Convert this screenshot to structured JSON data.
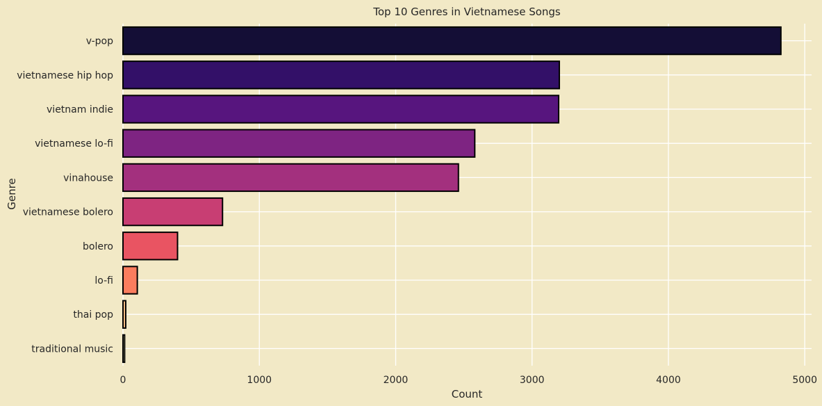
{
  "chart_data": {
    "type": "bar",
    "orientation": "horizontal",
    "title": "Top 10 Genres in Vietnamese Songs",
    "xlabel": "Count",
    "ylabel": "Genre",
    "categories": [
      "v-pop",
      "vietnamese hip hop",
      "vietnam indie",
      "vietnamese lo-fi",
      "vinahouse",
      "vietnamese bolero",
      "bolero",
      "lo-fi",
      "thai pop",
      "traditional music"
    ],
    "values": [
      4825,
      3200,
      3195,
      2580,
      2460,
      730,
      400,
      105,
      20,
      12
    ],
    "colors": [
      "#140e36",
      "#331068",
      "#57157e",
      "#7e2482",
      "#a3307e",
      "#c83e73",
      "#e95462",
      "#fa7d5e",
      "#fec488",
      "#fcfdbf"
    ],
    "xlim": [
      0,
      5050
    ],
    "xticks": [
      0,
      1000,
      2000,
      3000,
      4000,
      5000
    ],
    "grid": true,
    "background": "#f2e9c6"
  }
}
